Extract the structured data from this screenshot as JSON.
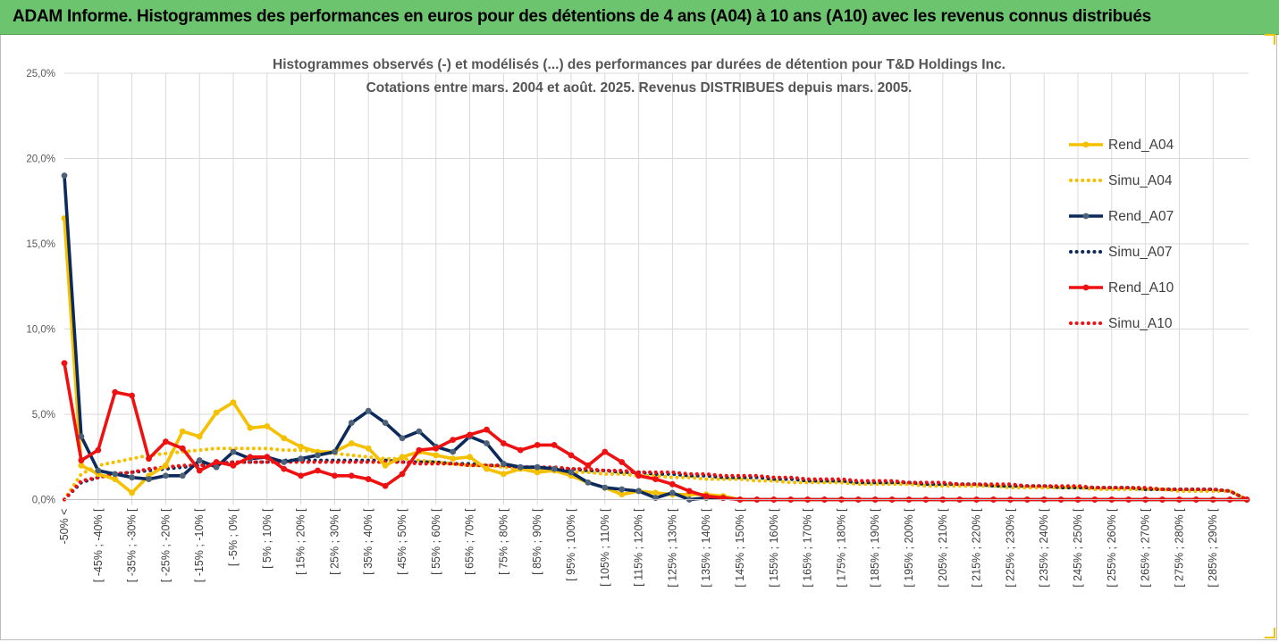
{
  "banner": {
    "title": "ADAM Informe. Histogrammes des performances en euros pour des détentions de 4 ans (A04) à 10 ans (A10) avec les revenus connus distribués"
  },
  "colors": {
    "banner_bg": "#6cc46e",
    "A04": "#f5c000",
    "A07": "#0d2a5c",
    "A10": "#ee1111",
    "grid": "#d9d9d9",
    "axis_text": "#595959"
  },
  "chart_data": {
    "type": "line",
    "title_line1": "Histogrammes observés (-) et modélisés (...) des performances par durées de détention pour T&D Holdings Inc.",
    "title_line2": "Cotations entre mars. 2004 et août. 2025. Revenus DISTRIBUES depuis mars. 2005.",
    "ylim": [
      0,
      25
    ],
    "yticks": [
      "0,0%",
      "5,0%",
      "10,0%",
      "15,0%",
      "20,0%",
      "25,0%"
    ],
    "grid": "vertical and horizontal",
    "legend_position": "right",
    "x_tick_labels": [
      "-50% <",
      "[ -45% ; -40% [",
      "[ -35% ; -30% [",
      "[ -25% ; -20% [",
      "[ -15% ; -10% [",
      "[ -5% ; 0% [",
      "[ 5% ; 10% [",
      "[ 15% ; 20% [",
      "[ 25% ; 30% [",
      "[ 35% ; 40% [",
      "[ 45% ; 50% [",
      "[ 55% ; 60% [",
      "[ 65% ; 70% [",
      "[ 75% ; 80% [",
      "[ 85% ; 90% [",
      "[ 95% ; 100% [",
      "[ 105% ; 110% [",
      "[ 115% ; 120% [",
      "[ 125% ; 130% [",
      "[ 135% ; 140% [",
      "[ 145% ; 150% [",
      "[ 155% ; 160% [",
      "[ 165% ; 170% [",
      "[ 175% ; 180% [",
      "[ 185% ; 190% [",
      "[ 195% ; 200% [",
      "[ 205% ; 210% [",
      "[ 215% ; 220% [",
      "[ 225% ; 230% [",
      "[ 235% ; 240% [",
      "[ 245% ; 250% [",
      "[ 255% ; 260% [",
      "[ 265% ; 270% [",
      "[ 275% ; 280% [",
      "[ 285% ; 290% ["
    ],
    "series": [
      {
        "name": "Rend_A04",
        "style": "solid",
        "color": "#f5c000",
        "values": [
          16.5,
          2.0,
          1.5,
          1.2,
          0.4,
          1.4,
          2.0,
          4.0,
          3.7,
          5.1,
          5.7,
          4.2,
          4.3,
          3.6,
          3.1,
          2.8,
          2.8,
          3.3,
          3.0,
          2.0,
          2.5,
          2.8,
          2.6,
          2.4,
          2.5,
          1.8,
          1.5,
          1.8,
          1.6,
          1.7,
          1.4,
          1.0,
          0.7,
          0.3,
          0.5,
          0.4,
          0.3,
          0.3,
          0.3,
          0.2,
          0.0,
          0.0,
          0.0,
          0.0,
          0.0,
          0.0,
          0.0,
          0.0,
          0.0,
          0.0,
          0.0,
          0.0,
          0.0,
          0.0,
          0.0,
          0.0,
          0.0,
          0.0,
          0.0,
          0.0,
          0.0,
          0.0,
          0.0,
          0.0,
          0.0,
          0.0,
          0.0,
          0.0,
          0.0,
          0.0,
          0.0
        ]
      },
      {
        "name": "Simu_A04",
        "style": "dotted",
        "color": "#f5c000",
        "values": [
          0.0,
          1.5,
          2.0,
          2.2,
          2.4,
          2.6,
          2.7,
          2.8,
          2.9,
          3.0,
          3.0,
          3.0,
          3.0,
          2.9,
          2.9,
          2.8,
          2.7,
          2.6,
          2.5,
          2.4,
          2.4,
          2.3,
          2.2,
          2.1,
          2.0,
          2.0,
          1.9,
          1.8,
          1.8,
          1.7,
          1.6,
          1.6,
          1.5,
          1.5,
          1.4,
          1.4,
          1.3,
          1.3,
          1.2,
          1.2,
          1.2,
          1.1,
          1.1,
          1.0,
          1.0,
          1.0,
          1.0,
          0.9,
          0.9,
          0.9,
          0.9,
          0.8,
          0.8,
          0.8,
          0.8,
          0.8,
          0.7,
          0.7,
          0.7,
          0.7,
          0.7,
          0.6,
          0.6,
          0.6,
          0.6,
          0.6,
          0.5,
          0.5,
          0.5,
          0.5,
          0.0
        ]
      },
      {
        "name": "Rend_A07",
        "style": "solid",
        "color": "#0d2a5c",
        "values": [
          19.0,
          3.7,
          1.7,
          1.5,
          1.3,
          1.2,
          1.4,
          1.4,
          2.3,
          1.9,
          2.8,
          2.4,
          2.5,
          2.2,
          2.4,
          2.6,
          2.8,
          4.5,
          5.2,
          4.5,
          3.6,
          4.0,
          3.1,
          2.8,
          3.7,
          3.3,
          2.1,
          1.9,
          1.9,
          1.8,
          1.6,
          1.0,
          0.7,
          0.6,
          0.5,
          0.1,
          0.4,
          0.0,
          0.1,
          0.1,
          0.0,
          0.0,
          0.0,
          0.0,
          0.0,
          0.0,
          0.0,
          0.0,
          0.0,
          0.0,
          0.0,
          0.0,
          0.0,
          0.0,
          0.0,
          0.0,
          0.0,
          0.0,
          0.0,
          0.0,
          0.0,
          0.0,
          0.0,
          0.0,
          0.0,
          0.0,
          0.0,
          0.0,
          0.0,
          0.0,
          0.0
        ]
      },
      {
        "name": "Simu_A07",
        "style": "dotted",
        "color": "#0d2a5c",
        "values": [
          0.0,
          1.0,
          1.3,
          1.5,
          1.6,
          1.7,
          1.8,
          1.9,
          2.0,
          2.1,
          2.2,
          2.2,
          2.2,
          2.3,
          2.3,
          2.3,
          2.3,
          2.3,
          2.3,
          2.3,
          2.2,
          2.2,
          2.2,
          2.1,
          2.1,
          2.0,
          2.0,
          1.9,
          1.9,
          1.8,
          1.8,
          1.7,
          1.7,
          1.6,
          1.6,
          1.5,
          1.5,
          1.4,
          1.4,
          1.3,
          1.3,
          1.3,
          1.2,
          1.2,
          1.1,
          1.1,
          1.1,
          1.0,
          1.0,
          1.0,
          1.0,
          0.9,
          0.9,
          0.9,
          0.9,
          0.8,
          0.8,
          0.8,
          0.8,
          0.7,
          0.7,
          0.7,
          0.7,
          0.7,
          0.6,
          0.6,
          0.6,
          0.6,
          0.6,
          0.5,
          0.0
        ]
      },
      {
        "name": "Rend_A10",
        "style": "solid",
        "color": "#ee1111",
        "values": [
          8.0,
          2.3,
          2.9,
          6.3,
          6.1,
          2.4,
          3.4,
          3.0,
          1.7,
          2.2,
          2.0,
          2.5,
          2.5,
          1.8,
          1.4,
          1.7,
          1.4,
          1.4,
          1.2,
          0.8,
          1.5,
          2.9,
          3.0,
          3.5,
          3.8,
          4.1,
          3.3,
          2.9,
          3.2,
          3.2,
          2.6,
          2.0,
          2.8,
          2.2,
          1.4,
          1.2,
          0.9,
          0.5,
          0.2,
          0.1,
          0.0,
          0.0,
          0.0,
          0.0,
          0.0,
          0.0,
          0.0,
          0.0,
          0.0,
          0.0,
          0.0,
          0.0,
          0.0,
          0.0,
          0.0,
          0.0,
          0.0,
          0.0,
          0.0,
          0.0,
          0.0,
          0.0,
          0.0,
          0.0,
          0.0,
          0.0,
          0.0,
          0.0,
          0.0,
          0.0,
          0.0
        ]
      },
      {
        "name": "Simu_A10",
        "style": "dotted",
        "color": "#ee1111",
        "values": [
          0.0,
          1.1,
          1.3,
          1.5,
          1.6,
          1.8,
          1.9,
          2.0,
          2.0,
          2.1,
          2.2,
          2.2,
          2.2,
          2.2,
          2.2,
          2.2,
          2.2,
          2.2,
          2.2,
          2.2,
          2.2,
          2.1,
          2.1,
          2.1,
          2.0,
          2.0,
          2.0,
          1.9,
          1.9,
          1.9,
          1.8,
          1.8,
          1.7,
          1.7,
          1.6,
          1.6,
          1.6,
          1.5,
          1.5,
          1.4,
          1.4,
          1.4,
          1.3,
          1.3,
          1.2,
          1.2,
          1.2,
          1.1,
          1.1,
          1.1,
          1.0,
          1.0,
          1.0,
          0.9,
          0.9,
          0.9,
          0.9,
          0.8,
          0.8,
          0.8,
          0.8,
          0.7,
          0.7,
          0.7,
          0.7,
          0.6,
          0.6,
          0.6,
          0.6,
          0.5,
          0.0
        ]
      }
    ]
  }
}
